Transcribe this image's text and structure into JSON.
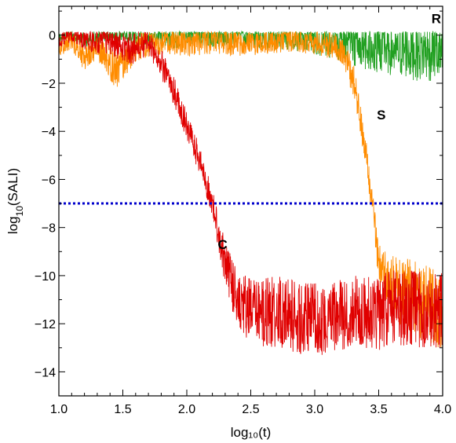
{
  "chart_data": {
    "type": "line",
    "title": "",
    "xlabel": "log₁₀(t)",
    "ylabel_main": "log",
    "ylabel_sub": "10",
    "ylabel_rest": "(SALI)",
    "xlim": [
      1.0,
      4.0
    ],
    "ylim": [
      -15,
      1.2
    ],
    "xticks": [
      1.0,
      1.5,
      2.0,
      2.5,
      3.0,
      3.5,
      4.0
    ],
    "xtick_labels": [
      "1.0",
      "1.5",
      "2.0",
      "2.5",
      "3.0",
      "3.5",
      "4.0"
    ],
    "yticks": [
      0,
      -2,
      -4,
      -6,
      -8,
      -10,
      -12,
      -14
    ],
    "ytick_labels": [
      "0",
      "−2",
      "−4",
      "−6",
      "−8",
      "−10",
      "−12",
      "−14"
    ],
    "grid": false,
    "threshold": {
      "y": -7,
      "color": "#0000cc",
      "style": "dotted"
    },
    "series": [
      {
        "label": "R",
        "color": "#22a022",
        "label_pos": [
          3.95,
          0.5
        ],
        "points": [
          [
            1.0,
            -0.1
          ],
          [
            1.1,
            0.0
          ],
          [
            1.2,
            -0.2
          ],
          [
            1.3,
            -0.1
          ],
          [
            1.4,
            -0.05
          ],
          [
            1.5,
            0.0
          ],
          [
            1.6,
            -0.05
          ],
          [
            1.7,
            -0.1
          ],
          [
            1.8,
            0.0
          ],
          [
            1.9,
            -0.2
          ],
          [
            2.0,
            0.0
          ],
          [
            2.2,
            -0.05
          ],
          [
            2.4,
            0.0
          ],
          [
            2.6,
            -0.1
          ],
          [
            2.8,
            0.0
          ],
          [
            3.0,
            -0.1
          ],
          [
            3.2,
            -0.3
          ],
          [
            3.4,
            -0.5
          ],
          [
            3.6,
            -0.6
          ],
          [
            3.8,
            -0.7
          ],
          [
            4.0,
            -0.8
          ]
        ],
        "noise_amp": [
          0.2,
          0.2,
          0.3,
          0.3,
          0.2,
          0.3,
          0.3,
          0.3,
          0.4,
          0.4,
          0.4,
          0.5,
          0.4,
          0.5,
          0.6,
          0.7,
          0.8,
          1.0,
          1.1,
          1.2,
          1.2
        ]
      },
      {
        "label": "S",
        "color": "#ff8c00",
        "label_pos": [
          3.52,
          -3.5
        ],
        "points": [
          [
            1.0,
            -0.6
          ],
          [
            1.1,
            -0.2
          ],
          [
            1.2,
            -0.9
          ],
          [
            1.3,
            -0.5
          ],
          [
            1.45,
            -1.5
          ],
          [
            1.6,
            -0.5
          ],
          [
            1.8,
            -0.3
          ],
          [
            2.0,
            -0.3
          ],
          [
            2.2,
            -0.2
          ],
          [
            2.4,
            -0.3
          ],
          [
            2.6,
            -0.3
          ],
          [
            2.8,
            -0.2
          ],
          [
            3.0,
            -0.3
          ],
          [
            3.2,
            -0.5
          ],
          [
            3.3,
            -1.8
          ],
          [
            3.35,
            -3.2
          ],
          [
            3.4,
            -5.0
          ],
          [
            3.45,
            -7.0
          ],
          [
            3.5,
            -9.5
          ],
          [
            3.6,
            -10.5
          ],
          [
            3.8,
            -11.0
          ],
          [
            4.0,
            -11.5
          ]
        ],
        "noise_amp": [
          0.3,
          0.4,
          0.6,
          0.5,
          0.8,
          0.6,
          0.5,
          0.6,
          0.6,
          0.6,
          0.5,
          0.5,
          0.5,
          0.6,
          0.7,
          0.6,
          0.7,
          0.6,
          0.8,
          1.4,
          1.6,
          1.6
        ]
      },
      {
        "label": "C",
        "color": "#e00000",
        "label_pos": [
          2.28,
          -8.9
        ],
        "points": [
          [
            1.0,
            -0.3
          ],
          [
            1.1,
            0.0
          ],
          [
            1.2,
            -0.2
          ],
          [
            1.3,
            -0.3
          ],
          [
            1.4,
            -0.2
          ],
          [
            1.5,
            -0.5
          ],
          [
            1.6,
            -0.5
          ],
          [
            1.7,
            -0.3
          ],
          [
            1.8,
            -1.2
          ],
          [
            1.9,
            -2.3
          ],
          [
            2.0,
            -3.8
          ],
          [
            2.1,
            -5.2
          ],
          [
            2.2,
            -7.0
          ],
          [
            2.3,
            -9.5
          ],
          [
            2.4,
            -11.0
          ],
          [
            2.5,
            -11.5
          ],
          [
            2.7,
            -11.5
          ],
          [
            2.9,
            -11.8
          ],
          [
            3.1,
            -11.8
          ],
          [
            3.3,
            -11.5
          ],
          [
            3.5,
            -11.5
          ],
          [
            3.7,
            -11.3
          ],
          [
            3.9,
            -11.5
          ],
          [
            4.0,
            -11.5
          ]
        ],
        "noise_amp": [
          0.3,
          0.3,
          0.4,
          0.5,
          0.6,
          0.7,
          0.7,
          0.5,
          0.6,
          0.6,
          0.6,
          0.6,
          0.6,
          0.9,
          1.3,
          1.4,
          1.5,
          1.5,
          1.5,
          1.5,
          1.6,
          1.6,
          1.6,
          1.6
        ]
      }
    ]
  }
}
